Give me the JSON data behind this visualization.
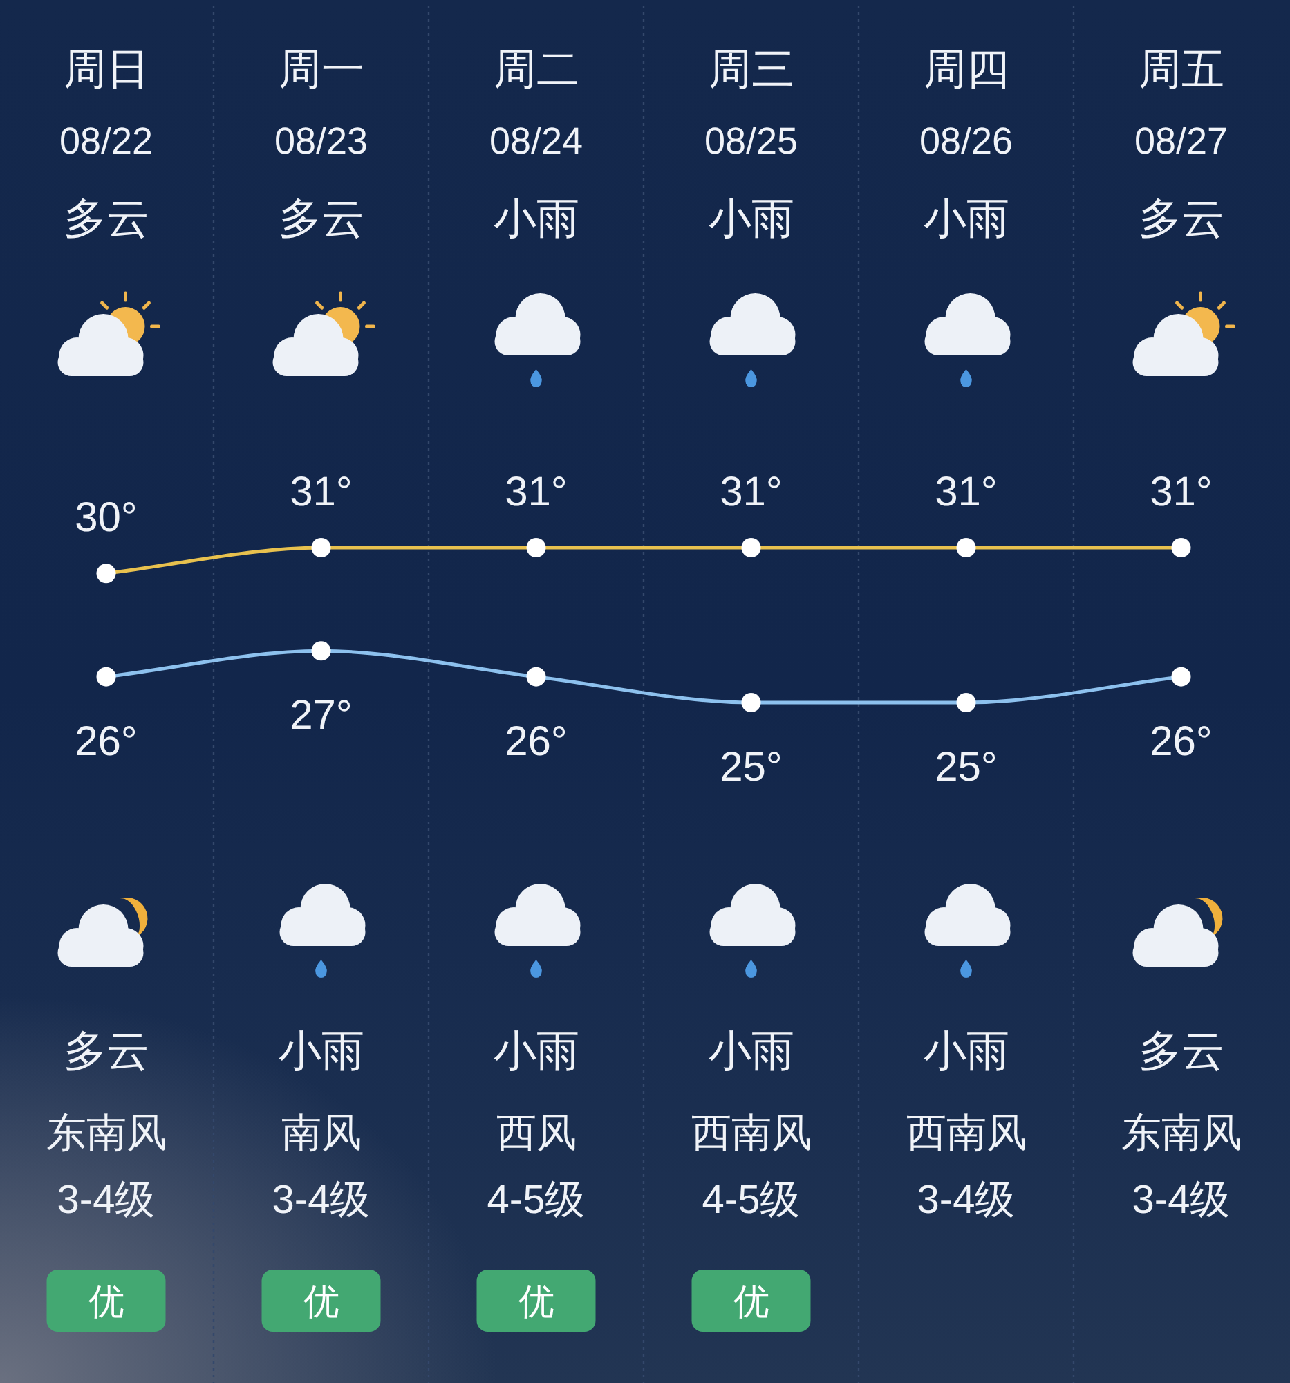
{
  "chart_data": {
    "type": "line",
    "categories": [
      "周日",
      "周一",
      "周二",
      "周三",
      "周四",
      "周五"
    ],
    "series": [
      {
        "color": "#e8c14e",
        "values": [
          30,
          31,
          31,
          31,
          31,
          31
        ],
        "value_labels": [
          "30°",
          "31°",
          "31°",
          "31°",
          "31°",
          "31°"
        ]
      },
      {
        "color": "#8dc1ee",
        "values": [
          26,
          27,
          26,
          25,
          25,
          26
        ],
        "value_labels": [
          "26°",
          "27°",
          "26°",
          "25°",
          "25°",
          "26°"
        ]
      }
    ],
    "marker": "circle",
    "grid": "x",
    "tick_labels": "x",
    "annotations": [
      "08/22",
      "08/23",
      "08/24",
      "08/25",
      "08/26",
      "08/27",
      "多云",
      "多云",
      "小雨",
      "小雨",
      "小雨",
      "多云",
      "多云",
      "小雨",
      "小雨",
      "小雨",
      "小雨",
      "多云",
      "东南风",
      "南风",
      "西风",
      "西南风",
      "西南风",
      "东南风",
      "3-4级",
      "3-4级",
      "4-5级",
      "4-5级",
      "3-4级",
      "3-4级",
      "优",
      "优",
      "优",
      "优"
    ]
  }
}
